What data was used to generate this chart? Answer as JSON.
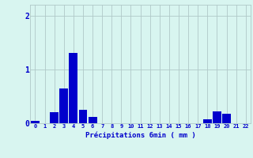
{
  "categories": [
    0,
    1,
    2,
    3,
    4,
    5,
    6,
    7,
    8,
    9,
    10,
    11,
    12,
    13,
    14,
    15,
    16,
    17,
    18,
    19,
    20,
    21,
    22
  ],
  "values": [
    0.05,
    0.0,
    0.2,
    0.65,
    1.3,
    0.25,
    0.12,
    0.0,
    0.0,
    0.0,
    0.0,
    0.0,
    0.0,
    0.0,
    0.0,
    0.0,
    0.0,
    0.0,
    0.08,
    0.22,
    0.18,
    0.0,
    0.0
  ],
  "bar_color": "#0000cc",
  "background_color": "#d8f5f0",
  "grid_color": "#b0c8c8",
  "xlabel": "Précipitations 6min ( mm )",
  "xlabel_color": "#0000cc",
  "yticks": [
    0,
    1,
    2
  ],
  "ylim": [
    0,
    2.2
  ],
  "xlim": [
    -0.5,
    22.5
  ],
  "tick_color": "#0000cc",
  "bar_width": 0.9
}
